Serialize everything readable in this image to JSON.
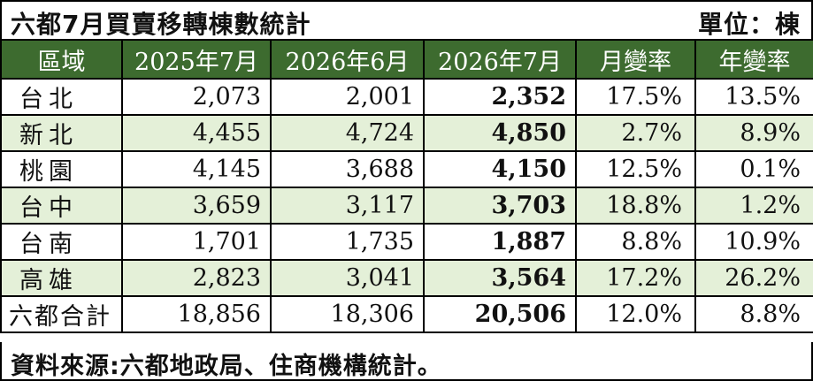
{
  "header": {
    "title": "六都7月買賣移轉棟數統計",
    "unit": "單位：棟"
  },
  "chart_data": {
    "type": "table",
    "columns": [
      "區域",
      "2025年7月",
      "2026年6月",
      "2026年7月",
      "月變率",
      "年變率"
    ],
    "rows": [
      {
        "region": "台北",
        "v2025_07": "2,073",
        "v2026_06": "2,001",
        "v2026_07": "2,352",
        "mom": "17.5%",
        "yoy": "13.5%"
      },
      {
        "region": "新北",
        "v2025_07": "4,455",
        "v2026_06": "4,724",
        "v2026_07": "4,850",
        "mom": "2.7%",
        "yoy": "8.9%"
      },
      {
        "region": "桃園",
        "v2025_07": "4,145",
        "v2026_06": "3,688",
        "v2026_07": "4,150",
        "mom": "12.5%",
        "yoy": "0.1%"
      },
      {
        "region": "台中",
        "v2025_07": "3,659",
        "v2026_06": "3,117",
        "v2026_07": "3,703",
        "mom": "18.8%",
        "yoy": "1.2%"
      },
      {
        "region": "台南",
        "v2025_07": "1,701",
        "v2026_06": "1,735",
        "v2026_07": "1,887",
        "mom": "8.8%",
        "yoy": "10.9%"
      },
      {
        "region": "高雄",
        "v2025_07": "2,823",
        "v2026_06": "3,041",
        "v2026_07": "3,564",
        "mom": "17.2%",
        "yoy": "26.2%"
      }
    ],
    "total": {
      "region": "六都合計",
      "v2025_07": "18,856",
      "v2026_06": "18,306",
      "v2026_07": "20,506",
      "mom": "12.0%",
      "yoy": "8.8%"
    }
  },
  "footer": {
    "source": "資料來源:六都地政局、住商機構統計。"
  },
  "colors": {
    "header_bg": "#3d6b2f",
    "header_text": "#ffffff",
    "shaded_row": "#e4f0d8"
  }
}
